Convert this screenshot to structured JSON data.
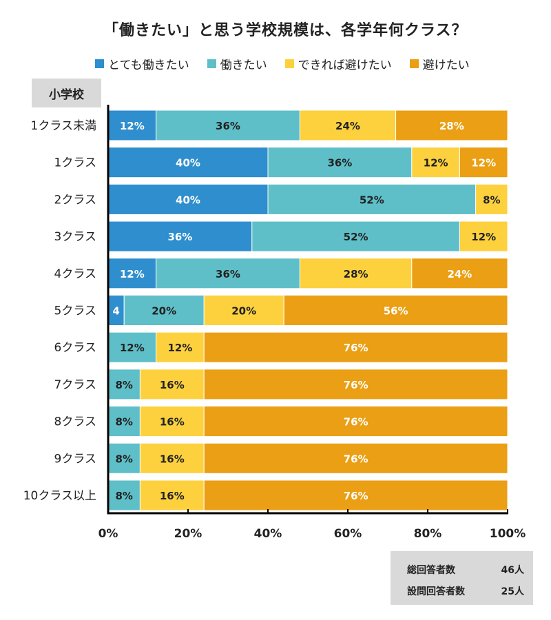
{
  "chart_data": {
    "type": "bar",
    "orientation": "horizontal-stacked-percent",
    "title": "「働きたい」と思う学校規模は、各学年何クラス？",
    "section_label": "小学校",
    "categories": [
      "1クラス未満",
      "1クラス",
      "2クラス",
      "3クラス",
      "4クラス",
      "5クラス",
      "6クラス",
      "7クラス",
      "8クラス",
      "9クラス",
      "10クラス以上"
    ],
    "series": [
      {
        "name": "とても働きたい",
        "color": "#2E8ECE",
        "label_color": "#ffffff",
        "values": [
          12,
          40,
          40,
          36,
          12,
          4,
          0,
          0,
          0,
          0,
          0
        ],
        "labels": [
          "12%",
          "40%",
          "40%",
          "36%",
          "12%",
          "4",
          "",
          "",
          "",
          "",
          ""
        ]
      },
      {
        "name": "働きたい",
        "color": "#5FBFC8",
        "label_color": "#222222",
        "values": [
          36,
          36,
          52,
          52,
          36,
          20,
          12,
          8,
          8,
          8,
          8
        ],
        "labels": [
          "36%",
          "36%",
          "52%",
          "52%",
          "36%",
          "20%",
          "12%",
          "8%",
          "8%",
          "8%",
          "8%"
        ]
      },
      {
        "name": "できれば避けたい",
        "color": "#FDD13E",
        "label_color": "#222222",
        "values": [
          24,
          12,
          8,
          12,
          28,
          20,
          12,
          16,
          16,
          16,
          16
        ],
        "labels": [
          "24%",
          "12%",
          "8%",
          "12%",
          "28%",
          "20%",
          "12%",
          "16%",
          "16%",
          "16%",
          "16%"
        ]
      },
      {
        "name": "避けたい",
        "color": "#EB9F14",
        "label_color": "#ffffff",
        "values": [
          28,
          12,
          0,
          0,
          24,
          56,
          76,
          76,
          76,
          76,
          76
        ],
        "labels": [
          "28%",
          "12%",
          "",
          "",
          "24%",
          "56%",
          "76%",
          "76%",
          "76%",
          "76%",
          "76%"
        ]
      }
    ],
    "x_ticks": [
      "0%",
      "20%",
      "40%",
      "60%",
      "80%",
      "100%"
    ],
    "xlim": [
      0,
      100
    ],
    "legend_position": "top"
  },
  "footer": {
    "total_label": "総回答者数",
    "total_value": "46人",
    "question_label": "設問回答者数",
    "question_value": "25人"
  }
}
